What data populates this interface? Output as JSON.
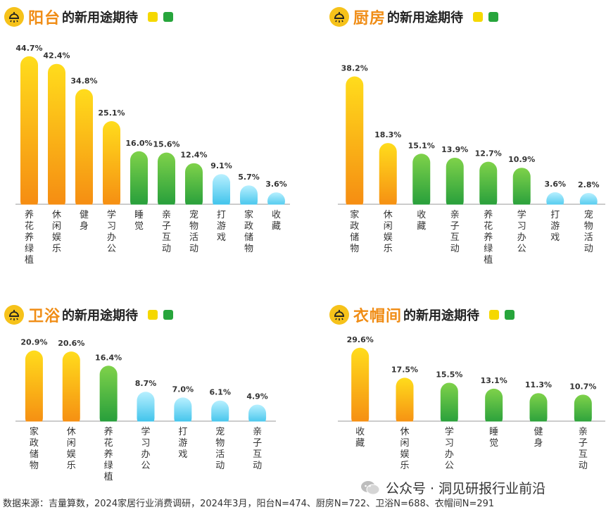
{
  "chart_data": [
    {
      "type": "bar",
      "title": "阳台的新用途期待",
      "categories": [
        "养花养绿植",
        "休闲娱乐",
        "健身",
        "学习办公",
        "睡觉",
        "亲子互动",
        "宠物活动",
        "打游戏",
        "家政储物",
        "收藏"
      ],
      "values": [
        44.7,
        42.4,
        34.8,
        25.1,
        16.0,
        15.6,
        12.4,
        9.1,
        5.7,
        3.6
      ],
      "colors": [
        "orange",
        "orange",
        "orange",
        "orange",
        "green",
        "green",
        "green",
        "blue",
        "blue",
        "blue"
      ],
      "unit": "%"
    },
    {
      "type": "bar",
      "title": "厨房的新用途期待",
      "categories": [
        "家政储物",
        "休闲娱乐",
        "收藏",
        "亲子互动",
        "养花养绿植",
        "学习办公",
        "打游戏",
        "宠物活动"
      ],
      "values": [
        38.2,
        18.3,
        15.1,
        13.9,
        12.7,
        10.9,
        3.6,
        2.8
      ],
      "colors": [
        "orange",
        "orange",
        "green",
        "green",
        "green",
        "green",
        "blue",
        "blue"
      ],
      "unit": "%"
    },
    {
      "type": "bar",
      "title": "卫浴的新用途期待",
      "categories": [
        "家政储物",
        "休闲娱乐",
        "养花养绿植",
        "学习办公",
        "打游戏",
        "宠物活动",
        "亲子互动"
      ],
      "values": [
        20.9,
        20.6,
        16.4,
        8.7,
        7.0,
        6.1,
        4.9
      ],
      "colors": [
        "orange",
        "orange",
        "green",
        "blue",
        "blue",
        "blue",
        "blue"
      ],
      "unit": "%"
    },
    {
      "type": "bar",
      "title": "衣帽间的新用途期待",
      "categories": [
        "收藏",
        "休闲娱乐",
        "学习办公",
        "睡觉",
        "健身",
        "亲子互动"
      ],
      "values": [
        29.6,
        17.5,
        15.5,
        13.1,
        11.3,
        10.7
      ],
      "colors": [
        "orange",
        "orange",
        "green",
        "green",
        "green",
        "green"
      ],
      "unit": "%"
    }
  ],
  "panels": [
    {
      "title_main": "阳台",
      "title_rest": "的新用途期待"
    },
    {
      "title_main": "厨房",
      "title_rest": "的新用途期待"
    },
    {
      "title_main": "卫浴",
      "title_rest": "的新用途期待"
    },
    {
      "title_main": "衣帽间",
      "title_rest": "的新用途期待"
    }
  ],
  "footer": "数据来源：吉量算数，2024家居行业消费调研，2024年3月，阳台N=474、厨房N=722、卫浴N=688、衣帽间N=291",
  "watermark": "公众号 · 洞见研报行业前沿",
  "palette": {
    "orange_top": "#ffd91a",
    "orange_bottom": "#f58a12",
    "green_top": "#7fd24a",
    "green_bottom": "#1f9a3a",
    "blue_top": "#b8f0ff",
    "blue_bottom": "#2cbce8",
    "accent": "#f08d16"
  }
}
